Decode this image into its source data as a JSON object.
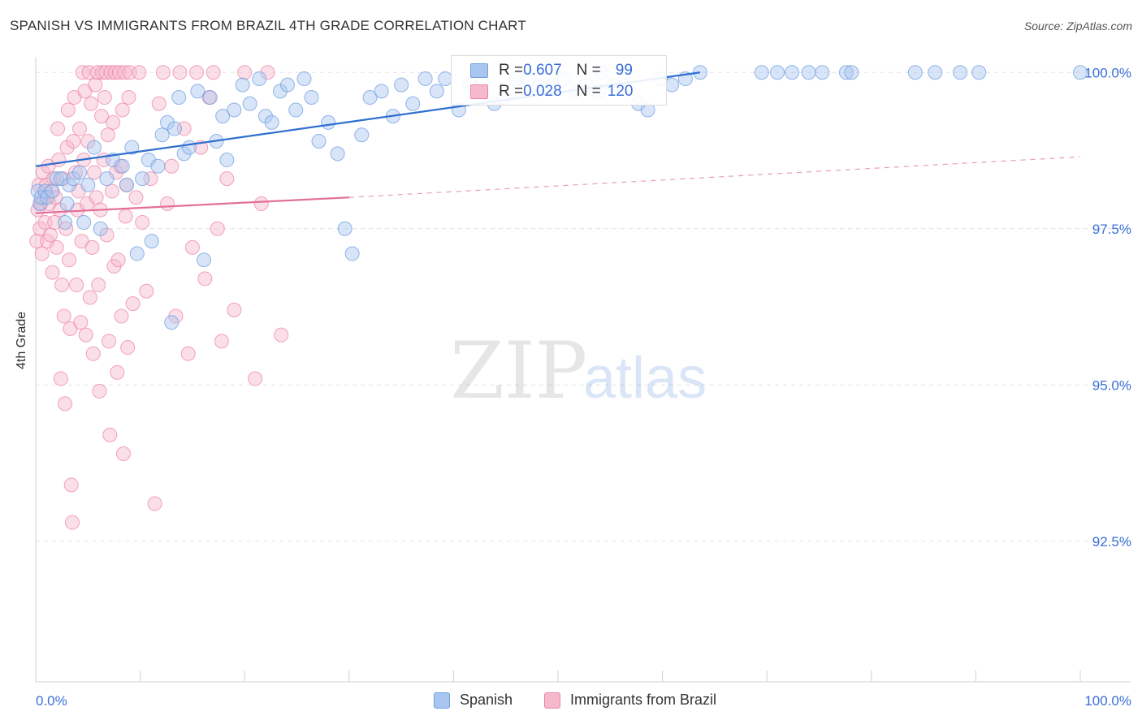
{
  "header": {
    "title": "SPANISH VS IMMIGRANTS FROM BRAZIL 4TH GRADE CORRELATION CHART",
    "source": "Source: ZipAtlas.com"
  },
  "watermark": {
    "zip": "ZIP",
    "atlas": "atlas"
  },
  "stats": [
    {
      "r_label": "R = ",
      "r_value": "0.607",
      "n_label": "N = ",
      "n_value": "99",
      "color": "#a9c6f0"
    },
    {
      "r_label": "R = ",
      "r_value": "0.028",
      "n_label": "N = ",
      "n_value": "120",
      "color": "#f6b8cb"
    }
  ],
  "chart_data": {
    "type": "scatter",
    "title": "SPANISH VS IMMIGRANTS FROM BRAZIL 4TH GRADE CORRELATION CHART",
    "xlabel": "",
    "ylabel": "4th Grade",
    "xlim": [
      0,
      100
    ],
    "ylim": [
      90.25,
      100.25
    ],
    "x_tick_labels": [
      "0.0%",
      "100.0%"
    ],
    "y_ticks": [
      92.5,
      95.0,
      97.5,
      100.0
    ],
    "y_tick_labels": [
      "92.5%",
      "95.0%",
      "97.5%",
      "100.0%"
    ],
    "grid": true,
    "legend_position": "bottom",
    "series": [
      {
        "name": "Spanish",
        "color": "#6f9fe0",
        "fill": "#a9c6f0",
        "trend": {
          "x": [
            0,
            63.6
          ],
          "y": [
            98.5,
            100.0
          ],
          "dashed_to": null,
          "color": "#2f6fd0"
        },
        "points": [
          [
            0.2,
            98.1
          ],
          [
            0.4,
            97.9
          ],
          [
            0.5,
            98.0
          ],
          [
            0.9,
            98.1
          ],
          [
            1.1,
            98.0
          ],
          [
            1.6,
            98.1
          ],
          [
            2.0,
            98.3
          ],
          [
            2.4,
            98.3
          ],
          [
            2.8,
            97.6
          ],
          [
            3.0,
            97.9
          ],
          [
            3.2,
            98.2
          ],
          [
            3.6,
            98.3
          ],
          [
            4.2,
            98.4
          ],
          [
            4.6,
            97.6
          ],
          [
            5.0,
            98.2
          ],
          [
            5.6,
            98.8
          ],
          [
            6.2,
            97.5
          ],
          [
            6.8,
            98.3
          ],
          [
            7.4,
            98.6
          ],
          [
            8.3,
            98.5
          ],
          [
            8.7,
            98.2
          ],
          [
            9.2,
            98.8
          ],
          [
            9.7,
            97.1
          ],
          [
            10.2,
            98.3
          ],
          [
            10.8,
            98.6
          ],
          [
            11.1,
            97.3
          ],
          [
            11.7,
            98.5
          ],
          [
            12.1,
            99.0
          ],
          [
            12.6,
            99.2
          ],
          [
            13.3,
            99.1
          ],
          [
            13.7,
            99.6
          ],
          [
            14.2,
            98.7
          ],
          [
            14.7,
            98.8
          ],
          [
            15.5,
            99.7
          ],
          [
            16.1,
            97.0
          ],
          [
            16.7,
            99.6
          ],
          [
            17.3,
            98.9
          ],
          [
            17.9,
            99.3
          ],
          [
            18.3,
            98.6
          ],
          [
            19.0,
            99.4
          ],
          [
            19.8,
            99.8
          ],
          [
            20.5,
            99.5
          ],
          [
            21.4,
            99.9
          ],
          [
            22.0,
            99.3
          ],
          [
            22.6,
            99.2
          ],
          [
            23.4,
            99.7
          ],
          [
            24.1,
            99.8
          ],
          [
            24.9,
            99.4
          ],
          [
            25.7,
            99.9
          ],
          [
            26.4,
            99.6
          ],
          [
            27.1,
            98.9
          ],
          [
            28.0,
            99.2
          ],
          [
            28.9,
            98.7
          ],
          [
            29.6,
            97.5
          ],
          [
            30.3,
            97.1
          ],
          [
            31.2,
            99.0
          ],
          [
            32.0,
            99.6
          ],
          [
            33.1,
            99.7
          ],
          [
            34.2,
            99.3
          ],
          [
            35.0,
            99.8
          ],
          [
            36.1,
            99.5
          ],
          [
            37.3,
            99.9
          ],
          [
            38.4,
            99.7
          ],
          [
            39.2,
            99.9
          ],
          [
            40.5,
            99.4
          ],
          [
            41.6,
            99.8
          ],
          [
            42.7,
            99.9
          ],
          [
            43.9,
            99.5
          ],
          [
            44.8,
            99.6
          ],
          [
            46.0,
            99.9
          ],
          [
            47.1,
            99.9
          ],
          [
            48.3,
            99.8
          ],
          [
            49.5,
            99.8
          ],
          [
            50.6,
            99.9
          ],
          [
            51.7,
            99.7
          ],
          [
            52.8,
            99.8
          ],
          [
            53.9,
            99.7
          ],
          [
            54.2,
            100.0
          ],
          [
            55.3,
            99.8
          ],
          [
            56.5,
            100.0
          ],
          [
            57.7,
            99.5
          ],
          [
            58.6,
            99.4
          ],
          [
            59.8,
            99.9
          ],
          [
            60.9,
            99.8
          ],
          [
            62.2,
            99.9
          ],
          [
            63.6,
            100.0
          ],
          [
            69.5,
            100.0
          ],
          [
            71.0,
            100.0
          ],
          [
            72.4,
            100.0
          ],
          [
            74.0,
            100.0
          ],
          [
            75.3,
            100.0
          ],
          [
            77.6,
            100.0
          ],
          [
            78.1,
            100.0
          ],
          [
            84.2,
            100.0
          ],
          [
            86.1,
            100.0
          ],
          [
            88.5,
            100.0
          ],
          [
            90.3,
            100.0
          ],
          [
            100.0,
            100.0
          ],
          [
            13.0,
            96.0
          ]
        ]
      },
      {
        "name": "Immigrants from Brazil",
        "color": "#ee86a6",
        "fill": "#f6b8cb",
        "trend": {
          "x": [
            0,
            30.0
          ],
          "y": [
            97.75,
            98.0
          ],
          "dashed_to": [
            100.0,
            98.65
          ],
          "color": "#e2709a"
        },
        "points": [
          [
            0.1,
            97.3
          ],
          [
            0.2,
            97.8
          ],
          [
            0.3,
            98.2
          ],
          [
            0.4,
            97.5
          ],
          [
            0.5,
            97.9
          ],
          [
            0.6,
            97.1
          ],
          [
            0.7,
            98.4
          ],
          [
            0.8,
            98.0
          ],
          [
            0.9,
            97.6
          ],
          [
            1.0,
            98.2
          ],
          [
            1.1,
            97.3
          ],
          [
            1.2,
            98.5
          ],
          [
            1.3,
            97.9
          ],
          [
            1.4,
            97.4
          ],
          [
            1.5,
            98.1
          ],
          [
            1.6,
            96.8
          ],
          [
            1.7,
            98.3
          ],
          [
            1.8,
            97.6
          ],
          [
            1.9,
            98.0
          ],
          [
            2.0,
            97.2
          ],
          [
            2.1,
            99.1
          ],
          [
            2.2,
            98.6
          ],
          [
            2.3,
            97.8
          ],
          [
            2.4,
            95.1
          ],
          [
            2.5,
            96.6
          ],
          [
            2.6,
            98.3
          ],
          [
            2.7,
            96.1
          ],
          [
            2.8,
            94.7
          ],
          [
            2.9,
            97.5
          ],
          [
            3.0,
            98.8
          ],
          [
            3.1,
            99.4
          ],
          [
            3.2,
            97.0
          ],
          [
            3.3,
            95.9
          ],
          [
            3.4,
            93.4
          ],
          [
            3.5,
            92.8
          ],
          [
            3.6,
            98.9
          ],
          [
            3.7,
            99.6
          ],
          [
            3.8,
            98.4
          ],
          [
            3.9,
            96.6
          ],
          [
            4.0,
            97.8
          ],
          [
            4.1,
            98.1
          ],
          [
            4.2,
            99.1
          ],
          [
            4.3,
            96.0
          ],
          [
            4.4,
            97.3
          ],
          [
            4.5,
            100.0
          ],
          [
            4.6,
            98.6
          ],
          [
            4.7,
            99.7
          ],
          [
            4.8,
            95.8
          ],
          [
            4.9,
            97.9
          ],
          [
            5.0,
            98.9
          ],
          [
            5.1,
            100.0
          ],
          [
            5.2,
            96.4
          ],
          [
            5.3,
            99.5
          ],
          [
            5.4,
            97.2
          ],
          [
            5.5,
            95.5
          ],
          [
            5.6,
            98.4
          ],
          [
            5.7,
            99.8
          ],
          [
            5.8,
            98.0
          ],
          [
            5.9,
            100.0
          ],
          [
            6.0,
            96.6
          ],
          [
            6.1,
            94.9
          ],
          [
            6.2,
            97.8
          ],
          [
            6.3,
            99.3
          ],
          [
            6.4,
            100.0
          ],
          [
            6.5,
            98.6
          ],
          [
            6.6,
            99.6
          ],
          [
            6.7,
            100.0
          ],
          [
            6.8,
            97.4
          ],
          [
            6.9,
            99.0
          ],
          [
            7.0,
            95.7
          ],
          [
            7.1,
            94.2
          ],
          [
            7.2,
            100.0
          ],
          [
            7.3,
            98.1
          ],
          [
            7.4,
            99.2
          ],
          [
            7.5,
            96.9
          ],
          [
            7.6,
            100.0
          ],
          [
            7.7,
            98.4
          ],
          [
            7.8,
            95.2
          ],
          [
            7.9,
            97.0
          ],
          [
            8.0,
            100.0
          ],
          [
            8.1,
            98.5
          ],
          [
            8.2,
            96.1
          ],
          [
            8.3,
            99.4
          ],
          [
            8.4,
            93.9
          ],
          [
            8.5,
            100.0
          ],
          [
            8.6,
            97.7
          ],
          [
            8.7,
            98.2
          ],
          [
            8.8,
            95.6
          ],
          [
            8.9,
            99.6
          ],
          [
            9.0,
            100.0
          ],
          [
            9.3,
            96.3
          ],
          [
            9.6,
            98.0
          ],
          [
            9.9,
            100.0
          ],
          [
            10.2,
            97.6
          ],
          [
            10.6,
            96.5
          ],
          [
            11.0,
            98.3
          ],
          [
            11.4,
            93.1
          ],
          [
            11.8,
            99.5
          ],
          [
            12.2,
            100.0
          ],
          [
            12.6,
            97.9
          ],
          [
            13.0,
            98.5
          ],
          [
            13.4,
            96.1
          ],
          [
            13.8,
            100.0
          ],
          [
            14.2,
            99.1
          ],
          [
            14.6,
            95.5
          ],
          [
            15.0,
            97.2
          ],
          [
            15.4,
            100.0
          ],
          [
            15.8,
            98.8
          ],
          [
            16.2,
            96.7
          ],
          [
            16.6,
            99.6
          ],
          [
            17.0,
            100.0
          ],
          [
            17.4,
            97.5
          ],
          [
            17.8,
            95.7
          ],
          [
            18.3,
            98.3
          ],
          [
            19.0,
            96.2
          ],
          [
            20.0,
            100.0
          ],
          [
            21.0,
            95.1
          ],
          [
            21.6,
            97.9
          ],
          [
            22.2,
            100.0
          ],
          [
            23.5,
            95.8
          ]
        ]
      }
    ]
  }
}
